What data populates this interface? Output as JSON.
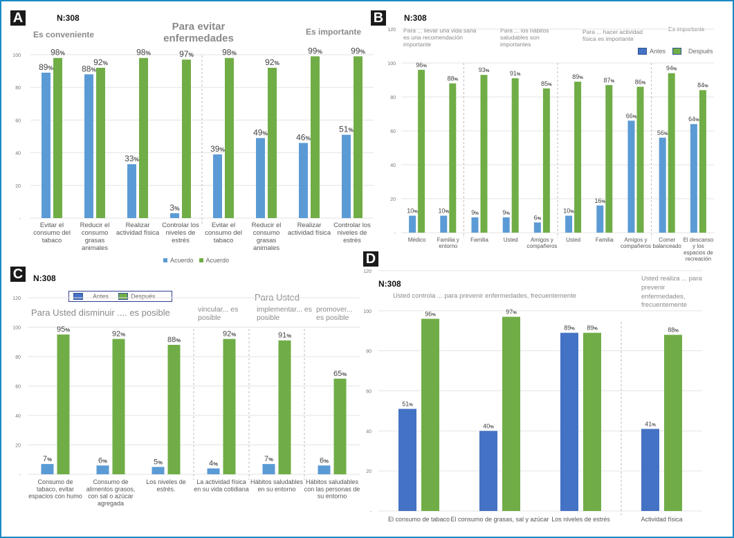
{
  "colors": {
    "antes_light": "#5b9bd5",
    "antes_dark": "#4472c4",
    "despues": "#70ad47",
    "grid": "#e3e3e3",
    "axis_text": "#777777",
    "label_text": "#444444",
    "frame": "#1a8ac6"
  },
  "chart_data": [
    {
      "panel": "A",
      "type": "bar",
      "n_label": "N:308",
      "title": "Para evitar enfermedades",
      "group_titles": [
        "Es conveniente",
        "Es importante"
      ],
      "yticks": [
        "-",
        "20",
        "40",
        "60",
        "80",
        "100"
      ],
      "ylim": [
        0,
        100
      ],
      "categories": [
        "Evitar el consumo del tabaco",
        "Reducir el consumo grasas animales",
        "Realizar actividad física",
        "Controlar los niveles de estrés",
        "Evitar el consumo del tabaco",
        "Reducir el consumo grasas animales",
        "Realizar actividad física",
        "Controlar los niveles de estrés"
      ],
      "category_lines": [
        [
          "Evitar el",
          "consumo del",
          "tabaco"
        ],
        [
          "Reducir el",
          "consumo",
          "grasas",
          "animales"
        ],
        [
          "Realizar",
          "actividad física"
        ],
        [
          "Controlar los",
          "niveles de",
          "estrés"
        ],
        [
          "Evitar el",
          "consumo del",
          "tabaco"
        ],
        [
          "Reducir el",
          "consumo",
          "grasas",
          "animales"
        ],
        [
          "Realizar",
          "actividad física"
        ],
        [
          "Controlar los",
          "niveles de",
          "estrés"
        ]
      ],
      "series": [
        {
          "name": "Acuerdo",
          "key": "antes",
          "values": [
            89,
            88,
            33,
            3,
            39,
            49,
            46,
            51
          ]
        },
        {
          "name": "Acuerdo",
          "key": "despues",
          "values": [
            98,
            92,
            98,
            97,
            98,
            92,
            99,
            99
          ]
        }
      ],
      "dividers_after": [
        4
      ],
      "legend": [
        "Acuerdo",
        "Acuerdo"
      ],
      "legend_position": "bottom"
    },
    {
      "panel": "B",
      "type": "bar",
      "n_label": "N:308",
      "group_titles": [
        "Para ... llevar una vida sana es una recomendación importante",
        "Para ... los hábitos saludables son importantes",
        "Para ... hacer actividad física es importante",
        "Es importante"
      ],
      "yticks": [
        "-",
        "20",
        "40",
        "60",
        "80",
        "100",
        "120"
      ],
      "ylim": [
        0,
        120
      ],
      "categories": [
        "Médico",
        "Familia y entorno",
        "Familia",
        "Usted",
        "Amigos y compañeros",
        "Usted",
        "Familia",
        "Amigos y compañeros",
        "Comer balanceado",
        "El descanso y los espacios de recreación"
      ],
      "category_lines": [
        [
          "Médico"
        ],
        [
          "Familia y",
          "entorno"
        ],
        [
          "Familia"
        ],
        [
          "Usted"
        ],
        [
          "Amigos y",
          "compañeros"
        ],
        [
          "Usted"
        ],
        [
          "Familia"
        ],
        [
          "Amigos y",
          "compañeros"
        ],
        [
          "Comer",
          "balanceado"
        ],
        [
          "El descanso",
          "y los",
          "espacios de",
          "recreación"
        ]
      ],
      "series": [
        {
          "name": "Antes",
          "key": "antes",
          "values": [
            10,
            10,
            9,
            9,
            6,
            10,
            16,
            66,
            56,
            64
          ]
        },
        {
          "name": "Después",
          "key": "despues",
          "values": [
            96,
            88,
            93,
            91,
            85,
            89,
            87,
            86,
            94,
            84
          ]
        }
      ],
      "dividers_after": [
        2,
        5,
        8
      ],
      "legend": [
        "Antes",
        "Después"
      ],
      "legend_position": "top-right"
    },
    {
      "panel": "C",
      "type": "bar",
      "n_label": "N:308",
      "group_titles": [
        "Para Usted disminuir .... es posible",
        "Para Usted",
        "vincular... es posible",
        "implementar... es posible",
        "promover... es posible"
      ],
      "yticks": [
        "-",
        "20",
        "40",
        "60",
        "80",
        "100",
        "120"
      ],
      "ylim": [
        0,
        120
      ],
      "categories": [
        "Consumo de tabaco, evitar espacios con humo",
        "Consumo de alimentos grasos, con sal o azúcar agregada",
        "Los niveles de estrés.",
        "La actividad física en su vida cotidiana",
        "Hábitos saludables en su entorno",
        "Hábitos saludables con las personas de su entorno"
      ],
      "category_lines": [
        [
          "Consumo de",
          "tabaco, evitar",
          "espacios con humo"
        ],
        [
          "Consumo de",
          "alimentos grasos,",
          "con sal o azúcar",
          "agregada"
        ],
        [
          "Los niveles de",
          "estrés."
        ],
        [
          "La actividad física",
          "en su vida cotidiana"
        ],
        [
          "Hábitos saludables",
          "en su entorno"
        ],
        [
          "Hábitos saludables",
          "con las personas de",
          "su entorno"
        ]
      ],
      "series": [
        {
          "name": "Antes",
          "key": "antes",
          "values": [
            7,
            6,
            5,
            4,
            7,
            6
          ]
        },
        {
          "name": "Después",
          "key": "despues",
          "values": [
            95,
            92,
            88,
            92,
            91,
            65
          ]
        }
      ],
      "dividers_after": [
        3,
        4,
        5
      ],
      "legend": [
        "Antes",
        "Después"
      ],
      "legend_position": "top-left"
    },
    {
      "panel": "D",
      "type": "bar",
      "n_label": "N:308",
      "group_titles": [
        "Usted controla ... para prevenir enfermedades, frecuentemente",
        "Usted realiza ... para prevenir enfermedades, frecuentemente"
      ],
      "yticks": [
        "-",
        "20",
        "40",
        "60",
        "80",
        "100",
        "120"
      ],
      "ylim": [
        0,
        120
      ],
      "categories": [
        "El consumo de tabaco",
        "El consumo de grasas, sal y azúcar",
        "Los niveles de estrés",
        "Actividad física"
      ],
      "category_lines": [
        [
          "El consumo de tabaco"
        ],
        [
          "El consumo de grasas, sal y azúcar"
        ],
        [
          "Los niveles de estrés"
        ],
        [
          "Actividad física"
        ]
      ],
      "series": [
        {
          "name": "Antes",
          "key": "antes",
          "values": [
            51,
            40,
            89,
            41
          ]
        },
        {
          "name": "Después",
          "key": "despues",
          "values": [
            96,
            97,
            89,
            88
          ]
        }
      ],
      "dividers_after": [
        3
      ],
      "legend": [],
      "legend_position": "none"
    }
  ]
}
